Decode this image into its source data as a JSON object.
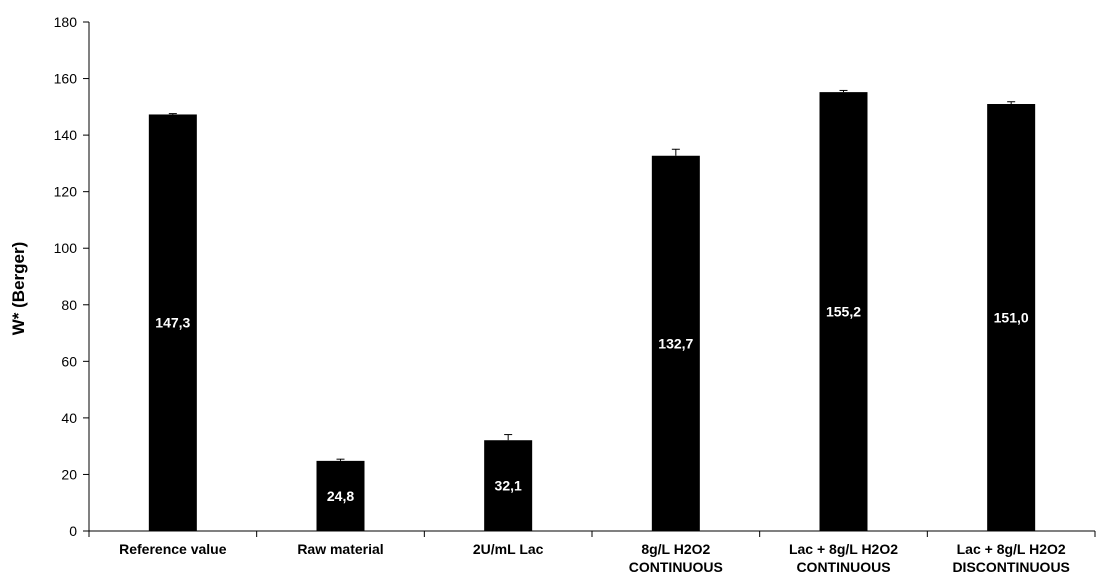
{
  "chart_data": {
    "type": "bar",
    "ylabel": "W* (Berger)",
    "xlabel": "",
    "ylim": [
      0,
      180
    ],
    "yticks": [
      0,
      20,
      40,
      60,
      80,
      100,
      120,
      140,
      160,
      180
    ],
    "grid": false,
    "categories": [
      [
        "Reference value"
      ],
      [
        "Raw material"
      ],
      [
        "2U/mL Lac"
      ],
      [
        "8g/L H2O2",
        "CONTINUOUS"
      ],
      [
        "Lac + 8g/L H2O2",
        "CONTINUOUS"
      ],
      [
        "Lac + 8g/L H2O2",
        "DISCONTINUOUS"
      ]
    ],
    "values": [
      147.3,
      24.8,
      32.1,
      132.7,
      155.2,
      151.0
    ],
    "errors": [
      0.3,
      0.6,
      2.0,
      2.3,
      0.6,
      0.8
    ],
    "data_labels": [
      "147,3",
      "24,8",
      "32,1",
      "132,7",
      "155,2",
      "151,0"
    ],
    "bar_color": "#000000",
    "label_color": "#ffffff"
  }
}
